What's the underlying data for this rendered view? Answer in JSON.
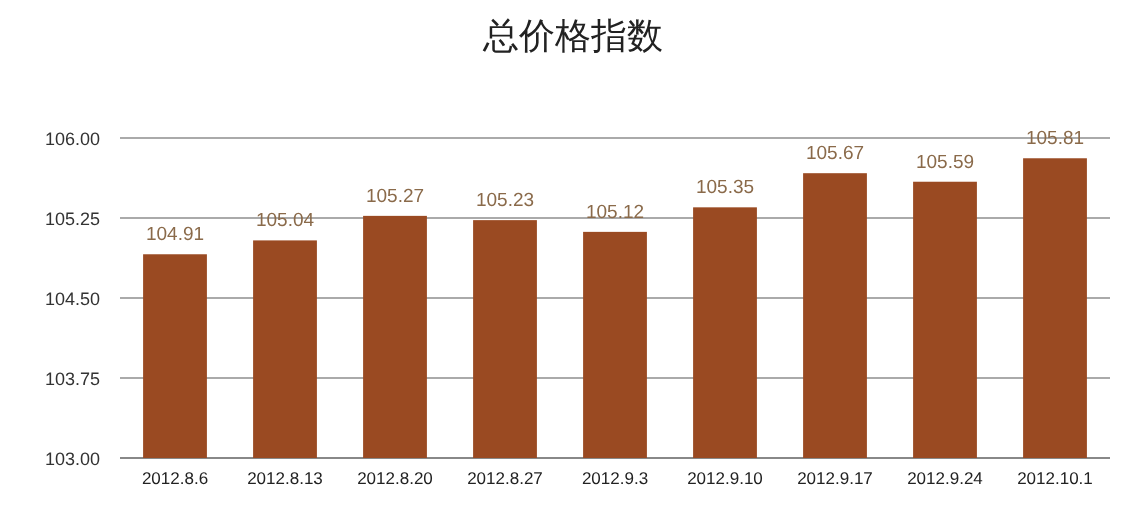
{
  "chart_data": {
    "type": "bar",
    "title": "总价格指数",
    "categories": [
      "2012.8.6",
      "2012.8.13",
      "2012.8.20",
      "2012.8.27",
      "2012.9.3",
      "2012.9.10",
      "2012.9.17",
      "2012.9.24",
      "2012.10.1"
    ],
    "values": [
      104.91,
      105.04,
      105.27,
      105.23,
      105.12,
      105.35,
      105.67,
      105.59,
      105.81
    ],
    "color": "#9a4a22",
    "data_labels": true,
    "grid": "y",
    "ylim": [
      103,
      106
    ],
    "yticks": [
      {
        "value": 103,
        "label": "103.00"
      },
      {
        "value": 103.75,
        "label": "103.75"
      },
      {
        "value": 104.5,
        "label": "104.50"
      },
      {
        "value": 105.25,
        "label": "105.25"
      },
      {
        "value": 106,
        "label": "106.00"
      }
    ]
  }
}
